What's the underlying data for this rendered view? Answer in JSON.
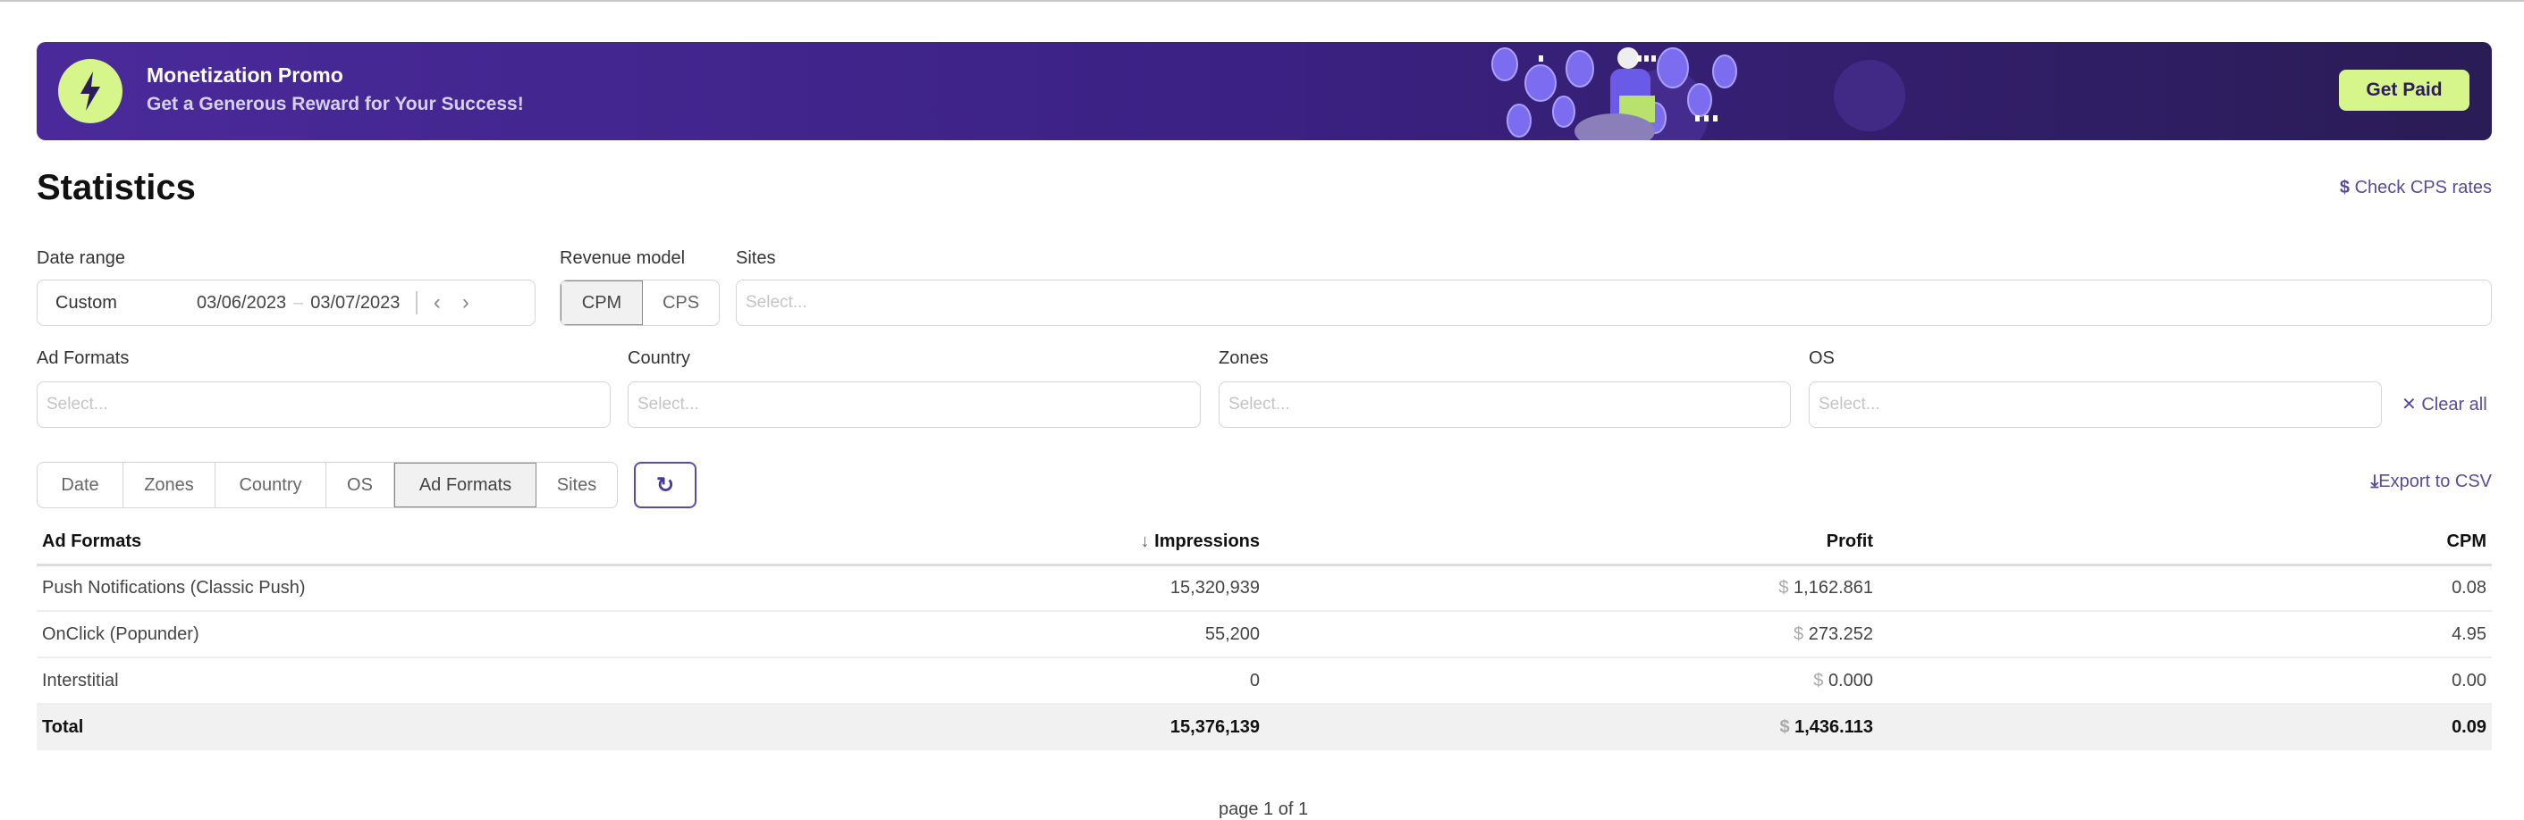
{
  "banner": {
    "title": "Monetization Promo",
    "subtitle": "Get a Generous Reward for Your Success!",
    "cta": "Get Paid",
    "icon": "lightning-icon",
    "accent": "#d6f58a",
    "bg": "#3b2183"
  },
  "page": {
    "title": "Statistics",
    "cps_link": "Check CPS rates",
    "cps_icon": "$"
  },
  "filters": {
    "date_range": {
      "label": "Date range",
      "preset": "Custom",
      "from": "03/06/2023",
      "sep": "–",
      "to": "03/07/2023"
    },
    "revenue_model": {
      "label": "Revenue model",
      "options": [
        "CPM",
        "CPS"
      ],
      "selected": "CPM"
    },
    "sites": {
      "label": "Sites",
      "placeholder": "Select..."
    },
    "ad_formats": {
      "label": "Ad Formats",
      "placeholder": "Select..."
    },
    "country": {
      "label": "Country",
      "placeholder": "Select..."
    },
    "zones": {
      "label": "Zones",
      "placeholder": "Select..."
    },
    "os": {
      "label": "OS",
      "placeholder": "Select..."
    },
    "clear_all": "Clear all"
  },
  "group_tabs": {
    "items": [
      "Date",
      "Zones",
      "Country",
      "OS",
      "Ad Formats",
      "Sites"
    ],
    "selected": "Ad Formats"
  },
  "export": "Export to CSV",
  "table": {
    "headers": [
      "Ad Formats",
      "Impressions",
      "Profit",
      "CPM"
    ],
    "sort_indicator": "↓",
    "rows": [
      {
        "name": "Push Notifications (Classic Push)",
        "impressions": "15,320,939",
        "profit": "1,162.861",
        "cpm": "0.08"
      },
      {
        "name": "OnClick (Popunder)",
        "impressions": "55,200",
        "profit": "273.252",
        "cpm": "4.95"
      },
      {
        "name": "Interstitial",
        "impressions": "0",
        "profit": "0.000",
        "cpm": "0.00"
      }
    ],
    "currency": "$",
    "total": {
      "name": "Total",
      "impressions": "15,376,139",
      "profit": "1,436.113",
      "cpm": "0.09"
    }
  },
  "pagination": "page 1 of 1"
}
